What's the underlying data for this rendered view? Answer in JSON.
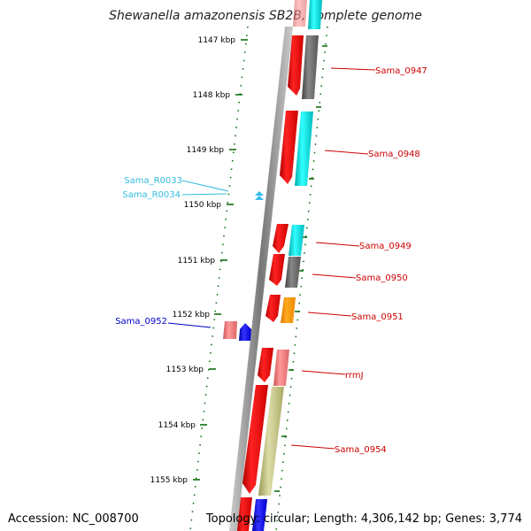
{
  "title": "Shewanella amazonensis SB2B, complete genome",
  "footer": {
    "accession": "Accession: NC_008700",
    "summary": "Topology: circular; Length: 4,306,142 bp; Genes: 3,774"
  },
  "scale": {
    "ticks": [
      "1147 kbp",
      "1148 kbp",
      "1149 kbp",
      "1150 kbp",
      "1151 kbp",
      "1152 kbp",
      "1153 kbp",
      "1154 kbp",
      "1155 kbp"
    ]
  },
  "genes": [
    {
      "label": "Sama_0947",
      "color": "#cc0000"
    },
    {
      "label": "Sama_0948",
      "color": "#cc0000"
    },
    {
      "label": "Sama_R0033",
      "color": "#33bbdd"
    },
    {
      "label": "Sama_R0034",
      "color": "#33bbdd"
    },
    {
      "label": "Sama_0949",
      "color": "#cc0000"
    },
    {
      "label": "Sama_0950",
      "color": "#cc0000"
    },
    {
      "label": "Sama_0951",
      "color": "#cc0000"
    },
    {
      "label": "Sama_0952",
      "color": "#0000cc"
    },
    {
      "label": "rrmJ",
      "color": "#cc0000"
    },
    {
      "label": "Sama_0954",
      "color": "#cc0000"
    }
  ],
  "colors": {
    "backbone": "#888888",
    "tick": "#006600",
    "cog_red": "#ff0000",
    "cog_dark": "#666666",
    "cog_cyan": "#00dddd",
    "cog_orange": "#ff9900",
    "cog_pink": "#ee7777",
    "cog_blue": "#0000ee",
    "cog_olive": "#bbbb77"
  }
}
